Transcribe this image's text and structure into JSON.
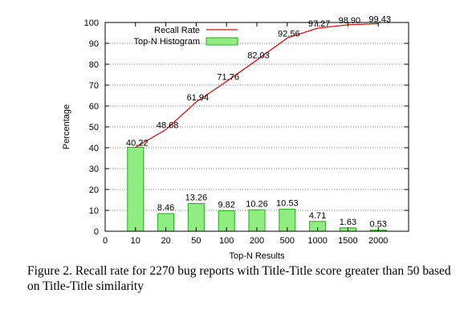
{
  "chart_data": {
    "type": "bar",
    "categories": [
      "10",
      "20",
      "50",
      "100",
      "200",
      "500",
      "1000",
      "1500",
      "2000"
    ],
    "x_tick_zero": "0",
    "series": [
      {
        "name": "Top-N Histogram",
        "kind": "bar",
        "color": "#90ee80",
        "stroke": "#22aa22",
        "values": [
          40.22,
          8.46,
          13.26,
          9.82,
          10.26,
          10.53,
          4.71,
          1.63,
          0.53
        ]
      },
      {
        "name": "Recall Rate",
        "kind": "line",
        "color": "#dd1111",
        "values": [
          40.22,
          48.68,
          61.94,
          71.76,
          82.03,
          92.56,
          97.27,
          98.9,
          99.43
        ]
      }
    ],
    "line_labels": [
      "40.22",
      "48.68",
      "61.94",
      "71.76",
      "82.03",
      "92.56",
      "97.27",
      "98.90",
      "99.43"
    ],
    "bar_labels": [
      "40.22",
      "8.46",
      "13.26",
      "9.82",
      "10.26",
      "10.53",
      "4.71",
      "1.63",
      "0.53"
    ],
    "xlabel": "Top-N Results",
    "ylabel": "Percentage",
    "ylim": [
      0,
      100
    ],
    "yticks": [
      0,
      10,
      20,
      30,
      40,
      50,
      60,
      70,
      80,
      90,
      100
    ],
    "grid": true,
    "legend_position": "top-left"
  },
  "caption": "Figure 2.   Recall rate for 2270 bug reports with Title-Title score greater than 50 based on Title-Title similarity"
}
